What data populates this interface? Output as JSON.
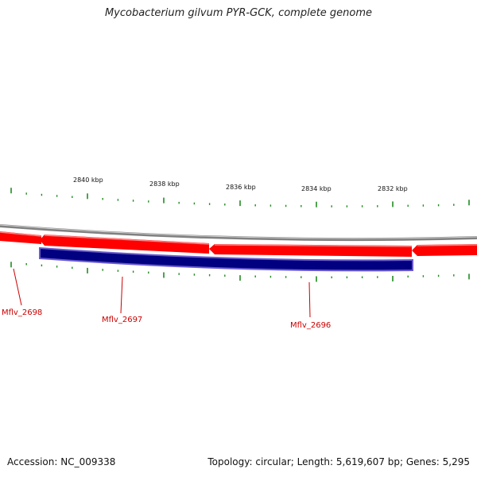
{
  "title": "Mycobacterium gilvum PYR-GCK, complete genome",
  "footer": {
    "accession": "Accession: NC_009338",
    "summary": "Topology: circular; Length: 5,619,607 bp; Genes: 5,295"
  },
  "scale": {
    "labels": [
      "2840 kbp",
      "2838 kbp",
      "2836 kbp",
      "2834 kbp",
      "2832 kbp"
    ]
  },
  "genes": [
    {
      "name": "Mflv_2698",
      "color": "#cc0000"
    },
    {
      "name": "Mflv_2697",
      "color": "#cc0000"
    },
    {
      "name": "Mflv_2696",
      "color": "#cc0000"
    }
  ],
  "colors": {
    "gene_red": "#ff0000",
    "gene_red_light": "#ff6a6a",
    "cds_blue": "#000080",
    "cds_blue_edge": "#6a5acd",
    "backbone": "#808080",
    "tick": "#228b22",
    "label_red": "#cc0000"
  }
}
